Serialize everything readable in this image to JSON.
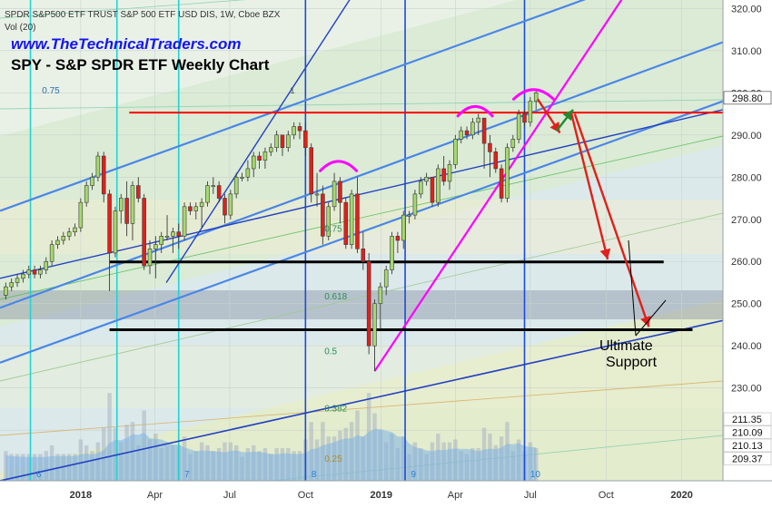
{
  "header": {
    "symbol_line": "SPDR S&P500 ETF TRUST S&P 500 ETF USD DIS, 1W, Cboe BZX",
    "volume_line": "Vol (20)",
    "website": "www.TheTechnicalTraders.com",
    "chart_title": "SPY - S&P SPDR ETF Weekly Chart"
  },
  "annotation": {
    "line1": "Ultimate",
    "line2": "Support"
  },
  "colors": {
    "bull": "#a6d86f",
    "bear": "#e0201b",
    "support": "#000000",
    "resistance": "#ff0000",
    "arc": "#ff00ff",
    "trend": "#4a86e8",
    "cycle_cyan": "#22d3d3",
    "cycle_blue": "#1c4bd6",
    "website": "#1515ee"
  },
  "chart_data": {
    "type": "candlestick",
    "title": "SPY - S&P SPDR ETF Weekly Chart",
    "ylim": [
      208,
      322
    ],
    "xlim": [
      "2017-09-25",
      "2020-02-20"
    ],
    "y_ticks": [
      220,
      230,
      240,
      250,
      260,
      270,
      280,
      290,
      300,
      310,
      320
    ],
    "y_tick_labels": [
      "220.00",
      "230.00",
      "240.00",
      "250.00",
      "260.00",
      "270.00",
      "280.00",
      "290.00",
      "300.00",
      "310.00",
      "320.00"
    ],
    "x_ticks": [
      "2018-01-01",
      "2018-04-01",
      "2018-07-01",
      "2018-10-01",
      "2019-01-01",
      "2019-04-01",
      "2019-07-01",
      "2019-10-01",
      "2020-01-01"
    ],
    "x_tick_labels": [
      "2018",
      "Apr",
      "Jul",
      "Oct",
      "2019",
      "Apr",
      "Jul",
      "Oct",
      "2020"
    ],
    "price_badges": [
      {
        "value": 298.8,
        "label": "298.80",
        "style": "dark"
      },
      {
        "value": 211.35,
        "label": "211.35",
        "style": "light"
      },
      {
        "value": 210.09,
        "label": "210.09",
        "style": "light"
      },
      {
        "value": 210.13,
        "label": "210.13",
        "style": "light"
      },
      {
        "value": 209.37,
        "label": "209.37",
        "style": "light"
      }
    ],
    "fib_labels": [
      {
        "label": "0.75",
        "date": "2017-11-15",
        "value": 299.8
      },
      {
        "label": "1",
        "date": "2018-09-12",
        "value": 299.8
      },
      {
        "label": "0.75",
        "date": "2018-10-24",
        "value": 267.0
      },
      {
        "label": "0.618",
        "date": "2018-10-24",
        "value": 251.0
      },
      {
        "label": "0.5",
        "date": "2018-10-24",
        "value": 238.0
      },
      {
        "label": "0.382",
        "date": "2018-10-24",
        "value": 224.5
      },
      {
        "label": "0.25",
        "date": "2018-10-24",
        "value": 212.5
      }
    ],
    "cycle_labels": [
      {
        "label": "6",
        "date": "2017-11-08"
      },
      {
        "label": "7",
        "date": "2018-05-07"
      },
      {
        "label": "8",
        "date": "2018-10-08"
      },
      {
        "label": "9",
        "date": "2019-02-06"
      },
      {
        "label": "10",
        "date": "2019-07-01"
      }
    ],
    "cycle_lines": [
      {
        "date": "2017-11-01",
        "color": "cyan"
      },
      {
        "date": "2018-02-14",
        "color": "cyan"
      },
      {
        "date": "2018-04-30",
        "color": "cyan"
      },
      {
        "date": "2018-10-01",
        "color": "blue"
      },
      {
        "date": "2019-01-30",
        "color": "blue"
      },
      {
        "date": "2019-06-24",
        "color": "blue"
      }
    ],
    "horizontal_levels": [
      {
        "name": "resistance",
        "value": 295.3,
        "from": "2018-03-01",
        "to": "2020-02-20",
        "color": "resistance"
      },
      {
        "name": "support-upper",
        "value": 259.9,
        "from": "2018-02-05",
        "to": "2019-12-10",
        "color": "support"
      },
      {
        "name": "support-lower",
        "value": 243.8,
        "from": "2018-02-05",
        "to": "2020-01-14",
        "color": "support"
      }
    ],
    "candles": [
      {
        "d": "2017-10-02",
        "o": 252,
        "c": 254,
        "h": 255,
        "l": 251
      },
      {
        "d": "2017-10-09",
        "o": 254,
        "c": 255,
        "h": 256,
        "l": 253
      },
      {
        "d": "2017-10-16",
        "o": 255,
        "c": 256,
        "h": 257,
        "l": 254
      },
      {
        "d": "2017-10-23",
        "o": 256,
        "c": 257,
        "h": 258,
        "l": 255
      },
      {
        "d": "2017-10-30",
        "o": 257,
        "c": 258,
        "h": 259,
        "l": 256
      },
      {
        "d": "2017-11-06",
        "o": 258,
        "c": 257,
        "h": 259,
        "l": 256
      },
      {
        "d": "2017-11-13",
        "o": 257,
        "c": 258,
        "h": 259,
        "l": 256
      },
      {
        "d": "2017-11-20",
        "o": 258,
        "c": 260,
        "h": 261,
        "l": 257
      },
      {
        "d": "2017-11-27",
        "o": 260,
        "c": 264,
        "h": 265,
        "l": 259
      },
      {
        "d": "2017-12-04",
        "o": 264,
        "c": 265,
        "h": 266,
        "l": 263
      },
      {
        "d": "2017-12-11",
        "o": 265,
        "c": 266,
        "h": 267,
        "l": 264
      },
      {
        "d": "2017-12-18",
        "o": 266,
        "c": 267,
        "h": 268,
        "l": 265
      },
      {
        "d": "2017-12-25",
        "o": 267,
        "c": 268,
        "h": 269,
        "l": 266
      },
      {
        "d": "2018-01-01",
        "o": 268,
        "c": 274,
        "h": 275,
        "l": 267
      },
      {
        "d": "2018-01-08",
        "o": 274,
        "c": 278,
        "h": 279,
        "l": 273
      },
      {
        "d": "2018-01-15",
        "o": 278,
        "c": 280,
        "h": 281,
        "l": 277
      },
      {
        "d": "2018-01-22",
        "o": 280,
        "c": 285,
        "h": 286,
        "l": 279
      },
      {
        "d": "2018-01-29",
        "o": 285,
        "c": 276,
        "h": 286,
        "l": 274
      },
      {
        "d": "2018-02-05",
        "o": 276,
        "c": 262,
        "h": 277,
        "l": 253
      },
      {
        "d": "2018-02-12",
        "o": 262,
        "c": 272,
        "h": 273,
        "l": 261
      },
      {
        "d": "2018-02-19",
        "o": 272,
        "c": 275,
        "h": 276,
        "l": 269
      },
      {
        "d": "2018-02-26",
        "o": 275,
        "c": 269,
        "h": 279,
        "l": 266
      },
      {
        "d": "2018-03-05",
        "o": 269,
        "c": 278,
        "h": 279,
        "l": 265
      },
      {
        "d": "2018-03-12",
        "o": 278,
        "c": 275,
        "h": 280,
        "l": 274
      },
      {
        "d": "2018-03-19",
        "o": 275,
        "c": 259,
        "h": 276,
        "l": 258
      },
      {
        "d": "2018-03-26",
        "o": 259,
        "c": 263,
        "h": 265,
        "l": 257
      },
      {
        "d": "2018-04-02",
        "o": 263,
        "c": 264,
        "h": 266,
        "l": 256
      },
      {
        "d": "2018-04-09",
        "o": 264,
        "c": 266,
        "h": 267,
        "l": 262
      },
      {
        "d": "2018-04-16",
        "o": 266,
        "c": 266,
        "h": 271,
        "l": 265
      },
      {
        "d": "2018-04-23",
        "o": 266,
        "c": 267,
        "h": 268,
        "l": 262
      },
      {
        "d": "2018-04-30",
        "o": 267,
        "c": 266,
        "h": 269,
        "l": 263
      },
      {
        "d": "2018-05-07",
        "o": 266,
        "c": 273,
        "h": 274,
        "l": 265
      },
      {
        "d": "2018-05-14",
        "o": 273,
        "c": 272,
        "h": 274,
        "l": 271
      },
      {
        "d": "2018-05-21",
        "o": 272,
        "c": 273,
        "h": 274,
        "l": 270
      },
      {
        "d": "2018-05-28",
        "o": 273,
        "c": 274,
        "h": 275,
        "l": 268
      },
      {
        "d": "2018-06-04",
        "o": 274,
        "c": 278,
        "h": 279,
        "l": 273
      },
      {
        "d": "2018-06-11",
        "o": 278,
        "c": 278,
        "h": 280,
        "l": 276
      },
      {
        "d": "2018-06-18",
        "o": 278,
        "c": 275,
        "h": 279,
        "l": 274
      },
      {
        "d": "2018-06-25",
        "o": 275,
        "c": 271,
        "h": 276,
        "l": 269
      },
      {
        "d": "2018-07-02",
        "o": 271,
        "c": 276,
        "h": 277,
        "l": 270
      },
      {
        "d": "2018-07-09",
        "o": 276,
        "c": 280,
        "h": 281,
        "l": 275
      },
      {
        "d": "2018-07-16",
        "o": 280,
        "c": 280,
        "h": 281,
        "l": 279
      },
      {
        "d": "2018-07-23",
        "o": 280,
        "c": 282,
        "h": 284,
        "l": 279
      },
      {
        "d": "2018-07-30",
        "o": 282,
        "c": 285,
        "h": 286,
        "l": 280
      },
      {
        "d": "2018-08-06",
        "o": 285,
        "c": 284,
        "h": 286,
        "l": 282
      },
      {
        "d": "2018-08-13",
        "o": 284,
        "c": 286,
        "h": 287,
        "l": 282
      },
      {
        "d": "2018-08-20",
        "o": 286,
        "c": 287,
        "h": 288,
        "l": 285
      },
      {
        "d": "2018-08-27",
        "o": 287,
        "c": 290,
        "h": 291,
        "l": 286
      },
      {
        "d": "2018-09-03",
        "o": 290,
        "c": 287,
        "h": 290,
        "l": 285
      },
      {
        "d": "2018-09-10",
        "o": 287,
        "c": 290,
        "h": 291,
        "l": 286
      },
      {
        "d": "2018-09-17",
        "o": 290,
        "c": 292,
        "h": 293,
        "l": 289
      },
      {
        "d": "2018-09-24",
        "o": 292,
        "c": 291,
        "h": 293,
        "l": 289
      },
      {
        "d": "2018-10-01",
        "o": 291,
        "c": 287,
        "h": 293,
        "l": 285
      },
      {
        "d": "2018-10-08",
        "o": 287,
        "c": 276,
        "h": 288,
        "l": 274
      },
      {
        "d": "2018-10-15",
        "o": 276,
        "c": 276,
        "h": 281,
        "l": 273
      },
      {
        "d": "2018-10-22",
        "o": 276,
        "c": 266,
        "h": 278,
        "l": 264
      },
      {
        "d": "2018-10-29",
        "o": 266,
        "c": 273,
        "h": 274,
        "l": 265
      },
      {
        "d": "2018-11-05",
        "o": 273,
        "c": 279,
        "h": 281,
        "l": 272
      },
      {
        "d": "2018-11-12",
        "o": 279,
        "c": 274,
        "h": 280,
        "l": 269
      },
      {
        "d": "2018-11-19",
        "o": 274,
        "c": 264,
        "h": 275,
        "l": 263
      },
      {
        "d": "2018-11-26",
        "o": 264,
        "c": 276,
        "h": 277,
        "l": 263
      },
      {
        "d": "2018-12-03",
        "o": 276,
        "c": 263,
        "h": 280,
        "l": 262
      },
      {
        "d": "2018-12-10",
        "o": 263,
        "c": 260,
        "h": 267,
        "l": 258
      },
      {
        "d": "2018-12-17",
        "o": 260,
        "c": 240,
        "h": 262,
        "l": 238
      },
      {
        "d": "2018-12-24",
        "o": 240,
        "c": 250,
        "h": 251,
        "l": 234
      },
      {
        "d": "2018-12-31",
        "o": 250,
        "c": 254,
        "h": 255,
        "l": 244
      },
      {
        "d": "2019-01-07",
        "o": 254,
        "c": 258,
        "h": 259,
        "l": 252
      },
      {
        "d": "2019-01-14",
        "o": 258,
        "c": 266,
        "h": 267,
        "l": 257
      },
      {
        "d": "2019-01-21",
        "o": 266,
        "c": 265,
        "h": 267,
        "l": 262
      },
      {
        "d": "2019-01-28",
        "o": 265,
        "c": 271,
        "h": 272,
        "l": 263
      },
      {
        "d": "2019-02-04",
        "o": 271,
        "c": 271,
        "h": 272,
        "l": 269
      },
      {
        "d": "2019-02-11",
        "o": 271,
        "c": 276,
        "h": 277,
        "l": 270
      },
      {
        "d": "2019-02-18",
        "o": 276,
        "c": 279,
        "h": 280,
        "l": 275
      },
      {
        "d": "2019-02-25",
        "o": 279,
        "c": 280,
        "h": 281,
        "l": 278
      },
      {
        "d": "2019-03-04",
        "o": 280,
        "c": 274,
        "h": 280,
        "l": 273
      },
      {
        "d": "2019-03-11",
        "o": 274,
        "c": 282,
        "h": 283,
        "l": 273
      },
      {
        "d": "2019-03-18",
        "o": 282,
        "c": 279,
        "h": 285,
        "l": 278
      },
      {
        "d": "2019-03-25",
        "o": 279,
        "c": 283,
        "h": 284,
        "l": 277
      },
      {
        "d": "2019-04-01",
        "o": 283,
        "c": 289,
        "h": 290,
        "l": 282
      },
      {
        "d": "2019-04-08",
        "o": 289,
        "c": 291,
        "h": 292,
        "l": 288
      },
      {
        "d": "2019-04-15",
        "o": 291,
        "c": 290,
        "h": 292,
        "l": 289
      },
      {
        "d": "2019-04-22",
        "o": 290,
        "c": 293,
        "h": 294,
        "l": 289
      },
      {
        "d": "2019-04-29",
        "o": 293,
        "c": 294,
        "h": 295,
        "l": 290
      },
      {
        "d": "2019-05-06",
        "o": 294,
        "c": 288,
        "h": 294,
        "l": 282
      },
      {
        "d": "2019-05-13",
        "o": 288,
        "c": 286,
        "h": 290,
        "l": 280
      },
      {
        "d": "2019-05-20",
        "o": 286,
        "c": 282,
        "h": 287,
        "l": 281
      },
      {
        "d": "2019-05-27",
        "o": 282,
        "c": 275,
        "h": 283,
        "l": 274
      },
      {
        "d": "2019-06-03",
        "o": 275,
        "c": 287,
        "h": 288,
        "l": 274
      },
      {
        "d": "2019-06-10",
        "o": 287,
        "c": 289,
        "h": 290,
        "l": 286
      },
      {
        "d": "2019-06-17",
        "o": 289,
        "c": 295,
        "h": 296,
        "l": 288
      },
      {
        "d": "2019-06-24",
        "o": 295,
        "c": 293,
        "h": 296,
        "l": 292
      },
      {
        "d": "2019-07-01",
        "o": 293,
        "c": 298,
        "h": 299,
        "l": 292
      },
      {
        "d": "2019-07-08",
        "o": 298,
        "c": 300,
        "h": 301,
        "l": 296
      }
    ]
  }
}
